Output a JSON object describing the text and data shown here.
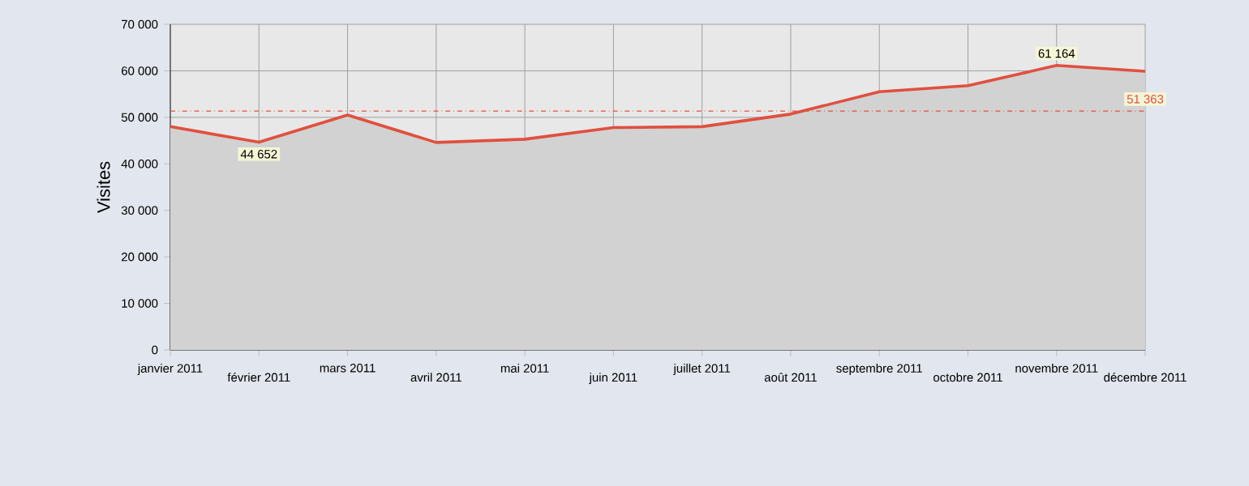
{
  "chart_data": {
    "type": "area",
    "ylabel": "Visites",
    "categories": [
      "janvier 2011",
      "février 2011",
      "mars 2011",
      "avril 2011",
      "mai 2011",
      "juin 2011",
      "juillet 2011",
      "août 2011",
      "septembre 2011",
      "octobre 2011",
      "novembre 2011",
      "décembre 2011"
    ],
    "series": [
      {
        "color": "#e0503f",
        "values": [
          48000,
          44652,
          50500,
          44600,
          45300,
          47800,
          48000,
          50700,
          55500,
          56800,
          61164,
          59900
        ],
        "value_labels": [
          null,
          "44 652",
          null,
          null,
          null,
          null,
          null,
          null,
          null,
          null,
          "61 164",
          null
        ]
      }
    ],
    "ylim": [
      0,
      70000
    ],
    "yticks": [
      {
        "value": 0,
        "label": "0"
      },
      {
        "value": 10000,
        "label": "10 000"
      },
      {
        "value": 20000,
        "label": "20 000"
      },
      {
        "value": 30000,
        "label": "30 000"
      },
      {
        "value": 40000,
        "label": "40 000"
      },
      {
        "value": 50000,
        "label": "50 000"
      },
      {
        "value": 60000,
        "label": "60 000"
      },
      {
        "value": 70000,
        "label": "70 000"
      }
    ],
    "ref_lines": [
      {
        "axis": "y",
        "value": 51363,
        "label": "51 363",
        "color": "#e0503f",
        "line_style": "dashdot"
      }
    ],
    "grid": true
  }
}
